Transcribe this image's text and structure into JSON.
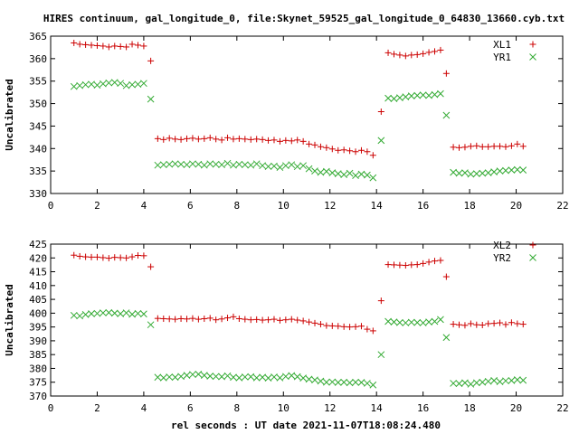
{
  "title": "HIRES continuum, gal_longitude_0, file:Skynet_59525_gal_longitude_0_64830_13660.cyb.txt",
  "colors": {
    "x_series": "#cc0000",
    "y_series": "#33aa33",
    "axis": "#000000"
  },
  "chart_data": [
    {
      "type": "scatter",
      "ylabel": "Uncalibrated",
      "xlabel": "",
      "xlim": [
        0,
        22
      ],
      "ylim": [
        330,
        365
      ],
      "xticks": [
        0,
        2,
        4,
        6,
        8,
        10,
        12,
        14,
        16,
        18,
        20,
        22
      ],
      "yticks": [
        330,
        335,
        340,
        345,
        350,
        355,
        360,
        365
      ],
      "grid": false,
      "legend_position": "top-right",
      "series": [
        {
          "name": "XL1",
          "marker": "plus",
          "x": [
            1.0,
            1.25,
            1.5,
            1.75,
            2.0,
            2.25,
            2.5,
            2.75,
            3.0,
            3.25,
            3.5,
            3.75,
            4.0,
            4.3,
            4.6,
            4.85,
            5.1,
            5.35,
            5.6,
            5.85,
            6.1,
            6.35,
            6.6,
            6.85,
            7.1,
            7.35,
            7.6,
            7.85,
            8.1,
            8.35,
            8.6,
            8.85,
            9.1,
            9.35,
            9.6,
            9.85,
            10.1,
            10.35,
            10.6,
            10.85,
            11.1,
            11.35,
            11.6,
            11.85,
            12.1,
            12.35,
            12.6,
            12.85,
            13.1,
            13.35,
            13.6,
            13.85,
            14.2,
            14.5,
            14.75,
            15.0,
            15.25,
            15.5,
            15.75,
            16.0,
            16.25,
            16.5,
            16.75,
            17.0,
            17.3,
            17.55,
            17.8,
            18.05,
            18.3,
            18.55,
            18.8,
            19.05,
            19.3,
            19.55,
            19.8,
            20.05,
            20.3
          ],
          "y": [
            363.5,
            363.2,
            363.1,
            363.0,
            362.9,
            362.8,
            362.6,
            362.8,
            362.7,
            362.6,
            363.2,
            363.0,
            362.8,
            359.5,
            342.2,
            342.0,
            342.3,
            342.1,
            342.0,
            342.2,
            342.3,
            342.1,
            342.2,
            342.4,
            342.1,
            341.9,
            342.4,
            342.1,
            342.2,
            342.1,
            342.0,
            342.1,
            342.0,
            341.8,
            341.9,
            341.6,
            341.8,
            341.7,
            341.9,
            341.6,
            341.0,
            340.8,
            340.4,
            340.2,
            339.9,
            339.6,
            339.7,
            339.5,
            339.3,
            339.6,
            339.3,
            338.5,
            348.2,
            361.3,
            361.0,
            360.8,
            360.6,
            360.8,
            360.9,
            361.1,
            361.4,
            361.6,
            361.9,
            356.7,
            340.3,
            340.2,
            340.3,
            340.5,
            340.6,
            340.4,
            340.4,
            340.5,
            340.5,
            340.4,
            340.6,
            341.0,
            340.5
          ]
        },
        {
          "name": "YR1",
          "marker": "cross",
          "x": [
            1.0,
            1.25,
            1.5,
            1.75,
            2.0,
            2.25,
            2.5,
            2.75,
            3.0,
            3.25,
            3.5,
            3.75,
            4.0,
            4.3,
            4.6,
            4.85,
            5.1,
            5.35,
            5.6,
            5.85,
            6.1,
            6.35,
            6.6,
            6.85,
            7.1,
            7.35,
            7.6,
            7.85,
            8.1,
            8.35,
            8.6,
            8.85,
            9.1,
            9.35,
            9.6,
            9.85,
            10.1,
            10.35,
            10.6,
            10.85,
            11.1,
            11.35,
            11.6,
            11.85,
            12.1,
            12.35,
            12.6,
            12.85,
            13.1,
            13.35,
            13.6,
            13.85,
            14.2,
            14.5,
            14.75,
            15.0,
            15.25,
            15.5,
            15.75,
            16.0,
            16.25,
            16.5,
            16.75,
            17.0,
            17.3,
            17.55,
            17.8,
            18.05,
            18.3,
            18.55,
            18.8,
            19.05,
            19.3,
            19.55,
            19.8,
            20.05,
            20.3
          ],
          "y": [
            353.8,
            354.0,
            354.2,
            354.3,
            354.1,
            354.4,
            354.6,
            354.7,
            354.5,
            354.0,
            354.2,
            354.3,
            354.5,
            351.0,
            336.3,
            336.4,
            336.5,
            336.6,
            336.5,
            336.4,
            336.6,
            336.5,
            336.3,
            336.6,
            336.5,
            336.4,
            336.7,
            336.3,
            336.5,
            336.4,
            336.3,
            336.6,
            336.2,
            336.0,
            336.1,
            335.8,
            336.2,
            336.4,
            336.0,
            336.2,
            335.5,
            335.0,
            334.7,
            334.9,
            334.6,
            334.4,
            334.2,
            334.5,
            334.0,
            334.3,
            334.1,
            333.5,
            341.8,
            351.2,
            351.1,
            351.3,
            351.5,
            351.7,
            351.8,
            351.9,
            351.8,
            352.0,
            352.2,
            347.4,
            334.7,
            334.5,
            334.6,
            334.3,
            334.4,
            334.5,
            334.6,
            334.8,
            335.0,
            335.1,
            335.2,
            335.3,
            335.2
          ]
        }
      ]
    },
    {
      "type": "scatter",
      "ylabel": "Uncalibrated",
      "xlabel": "rel seconds : UT date 2021-11-07T18:08:24.480",
      "xlim": [
        0,
        22
      ],
      "ylim": [
        370,
        425
      ],
      "xticks": [
        0,
        2,
        4,
        6,
        8,
        10,
        12,
        14,
        16,
        18,
        20,
        22
      ],
      "yticks": [
        370,
        375,
        380,
        385,
        390,
        395,
        400,
        405,
        410,
        415,
        420,
        425
      ],
      "grid": false,
      "legend_position": "top-right",
      "series": [
        {
          "name": "XL2",
          "marker": "plus",
          "x": [
            1.0,
            1.25,
            1.5,
            1.75,
            2.0,
            2.25,
            2.5,
            2.75,
            3.0,
            3.25,
            3.5,
            3.75,
            4.0,
            4.3,
            4.6,
            4.85,
            5.1,
            5.35,
            5.6,
            5.85,
            6.1,
            6.35,
            6.6,
            6.85,
            7.1,
            7.35,
            7.6,
            7.85,
            8.1,
            8.35,
            8.6,
            8.85,
            9.1,
            9.35,
            9.6,
            9.85,
            10.1,
            10.35,
            10.6,
            10.85,
            11.1,
            11.35,
            11.6,
            11.85,
            12.1,
            12.35,
            12.6,
            12.85,
            13.1,
            13.35,
            13.6,
            13.85,
            14.2,
            14.5,
            14.75,
            15.0,
            15.25,
            15.5,
            15.75,
            16.0,
            16.25,
            16.5,
            16.75,
            17.0,
            17.3,
            17.55,
            17.8,
            18.05,
            18.3,
            18.55,
            18.8,
            19.05,
            19.3,
            19.55,
            19.8,
            20.05,
            20.3
          ],
          "y": [
            421.0,
            420.6,
            420.4,
            420.3,
            420.3,
            420.1,
            419.9,
            420.2,
            420.1,
            420.0,
            420.4,
            420.9,
            420.8,
            416.8,
            398.1,
            398.0,
            397.9,
            397.8,
            398.0,
            397.9,
            398.1,
            397.8,
            398.0,
            398.2,
            397.6,
            397.9,
            398.3,
            398.7,
            398.0,
            397.8,
            397.6,
            397.7,
            397.5,
            397.6,
            397.8,
            397.4,
            397.6,
            397.8,
            397.5,
            397.2,
            396.8,
            396.4,
            396.0,
            395.5,
            395.4,
            395.3,
            395.1,
            395.0,
            395.1,
            395.3,
            394.2,
            393.6,
            404.5,
            417.6,
            417.5,
            417.4,
            417.3,
            417.5,
            417.6,
            418.0,
            418.5,
            418.9,
            419.1,
            413.2,
            396.0,
            395.8,
            395.6,
            396.2,
            395.8,
            395.7,
            396.2,
            396.3,
            396.5,
            395.9,
            396.6,
            396.2,
            396.0
          ]
        },
        {
          "name": "YR2",
          "marker": "cross",
          "x": [
            1.0,
            1.25,
            1.5,
            1.75,
            2.0,
            2.25,
            2.5,
            2.75,
            3.0,
            3.25,
            3.5,
            3.75,
            4.0,
            4.3,
            4.6,
            4.85,
            5.1,
            5.35,
            5.6,
            5.85,
            6.1,
            6.35,
            6.6,
            6.85,
            7.1,
            7.35,
            7.6,
            7.85,
            8.1,
            8.35,
            8.6,
            8.85,
            9.1,
            9.35,
            9.6,
            9.85,
            10.1,
            10.35,
            10.6,
            10.85,
            11.1,
            11.35,
            11.6,
            11.85,
            12.1,
            12.35,
            12.6,
            12.85,
            13.1,
            13.35,
            13.6,
            13.85,
            14.2,
            14.5,
            14.75,
            15.0,
            15.25,
            15.5,
            15.75,
            16.0,
            16.25,
            16.5,
            16.75,
            17.0,
            17.3,
            17.55,
            17.8,
            18.05,
            18.3,
            18.55,
            18.8,
            19.05,
            19.3,
            19.55,
            19.8,
            20.05,
            20.3
          ],
          "y": [
            399.2,
            399.0,
            399.5,
            399.8,
            399.9,
            400.1,
            400.2,
            400.0,
            399.8,
            400.1,
            399.6,
            399.9,
            399.7,
            395.8,
            376.8,
            376.6,
            376.9,
            376.8,
            377.1,
            377.5,
            377.8,
            377.9,
            377.5,
            377.2,
            377.1,
            377.0,
            377.3,
            376.8,
            376.6,
            376.9,
            377.0,
            376.6,
            376.8,
            376.5,
            376.9,
            376.6,
            377.1,
            377.4,
            377.0,
            376.5,
            376.1,
            375.8,
            375.4,
            375.0,
            375.1,
            374.9,
            375.0,
            374.8,
            375.0,
            374.9,
            374.6,
            374.0,
            385.0,
            397.0,
            396.8,
            396.6,
            396.5,
            396.7,
            396.6,
            396.5,
            396.8,
            397.0,
            397.7,
            391.2,
            374.6,
            374.5,
            374.8,
            374.3,
            374.8,
            375.0,
            375.3,
            375.6,
            375.2,
            375.5,
            375.6,
            375.9,
            375.7
          ]
        }
      ]
    }
  ]
}
